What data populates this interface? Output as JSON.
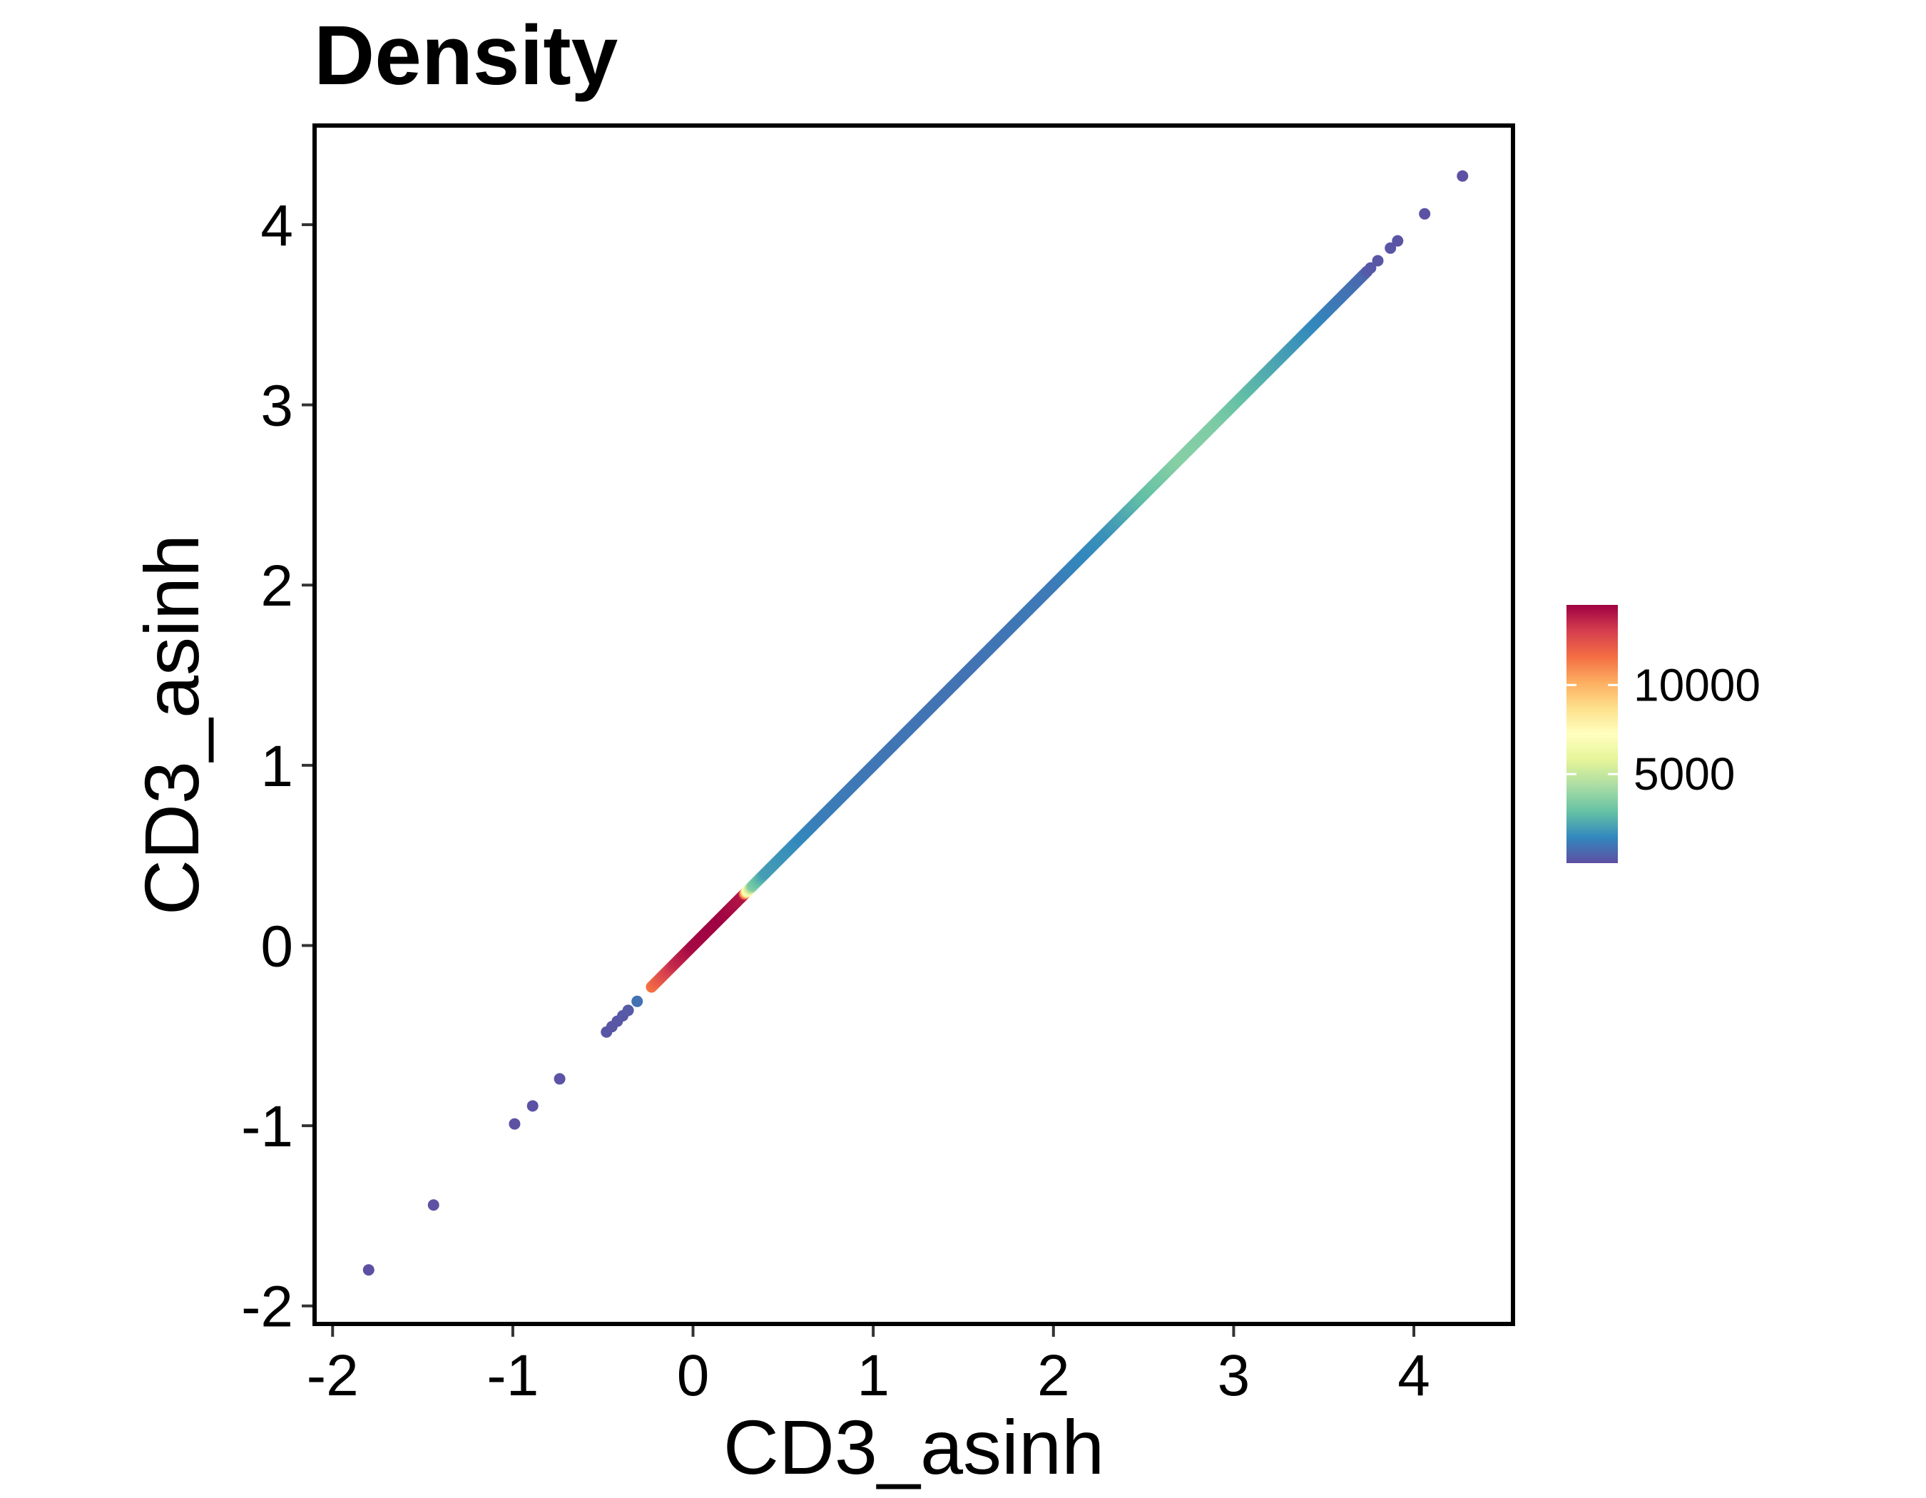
{
  "chart_data": {
    "type": "scatter",
    "title": "Density",
    "xlabel": "CD3_asinh",
    "ylabel": "CD3_asinh",
    "xlim": [
      -2.1,
      4.55
    ],
    "ylim": [
      -2.1,
      4.55
    ],
    "x_ticks": [
      -2,
      -1,
      0,
      1,
      2,
      3,
      4
    ],
    "y_ticks": [
      -2,
      -1,
      0,
      1,
      2,
      3,
      4
    ],
    "grid": false,
    "legend": {
      "position": "right",
      "type": "colorbar",
      "min": 0,
      "max": 14500,
      "ticks": [
        5000,
        10000
      ],
      "palette": [
        "#5E4FA2",
        "#3288BD",
        "#66C2A5",
        "#ABDDA4",
        "#E6F598",
        "#FFFFBF",
        "#FEE08B",
        "#FDAE61",
        "#F46D43",
        "#D53E4F",
        "#9E0142"
      ]
    },
    "outlier_points": [
      {
        "x": -1.8,
        "y": -1.8,
        "density": 30
      },
      {
        "x": -1.44,
        "y": -1.44,
        "density": 40
      },
      {
        "x": -0.99,
        "y": -0.99,
        "density": 60
      },
      {
        "x": -0.89,
        "y": -0.89,
        "density": 70
      },
      {
        "x": -0.74,
        "y": -0.74,
        "density": 90
      },
      {
        "x": -0.48,
        "y": -0.48,
        "density": 150
      },
      {
        "x": -0.45,
        "y": -0.45,
        "density": 170
      },
      {
        "x": -0.42,
        "y": -0.42,
        "density": 200
      },
      {
        "x": -0.39,
        "y": -0.39,
        "density": 230
      },
      {
        "x": -0.36,
        "y": -0.36,
        "density": 280
      },
      {
        "x": -0.31,
        "y": -0.31,
        "density": 900
      },
      {
        "x": 3.74,
        "y": 3.74,
        "density": 300
      },
      {
        "x": 3.76,
        "y": 3.76,
        "density": 250
      },
      {
        "x": 3.8,
        "y": 3.8,
        "density": 200
      },
      {
        "x": 3.87,
        "y": 3.87,
        "density": 150
      },
      {
        "x": 3.91,
        "y": 3.91,
        "density": 120
      },
      {
        "x": 4.06,
        "y": 4.06,
        "density": 80
      },
      {
        "x": 4.27,
        "y": 4.27,
        "density": 40
      }
    ],
    "density_profile": [
      {
        "x": -0.23,
        "density": 11500
      },
      {
        "x": -0.1,
        "density": 13500
      },
      {
        "x": 0.0,
        "density": 14300
      },
      {
        "x": 0.15,
        "density": 14500
      },
      {
        "x": 0.28,
        "density": 14000
      },
      {
        "x": 0.3,
        "density": 7500
      },
      {
        "x": 0.33,
        "density": 3500
      },
      {
        "x": 0.4,
        "density": 2000
      },
      {
        "x": 0.7,
        "density": 1200
      },
      {
        "x": 1.0,
        "density": 1000
      },
      {
        "x": 1.5,
        "density": 900
      },
      {
        "x": 2.0,
        "density": 1100
      },
      {
        "x": 2.3,
        "density": 1700
      },
      {
        "x": 2.5,
        "density": 2800
      },
      {
        "x": 2.7,
        "density": 3600
      },
      {
        "x": 2.9,
        "density": 3400
      },
      {
        "x": 3.2,
        "density": 2300
      },
      {
        "x": 3.5,
        "density": 1300
      },
      {
        "x": 3.74,
        "density": 600
      }
    ]
  }
}
